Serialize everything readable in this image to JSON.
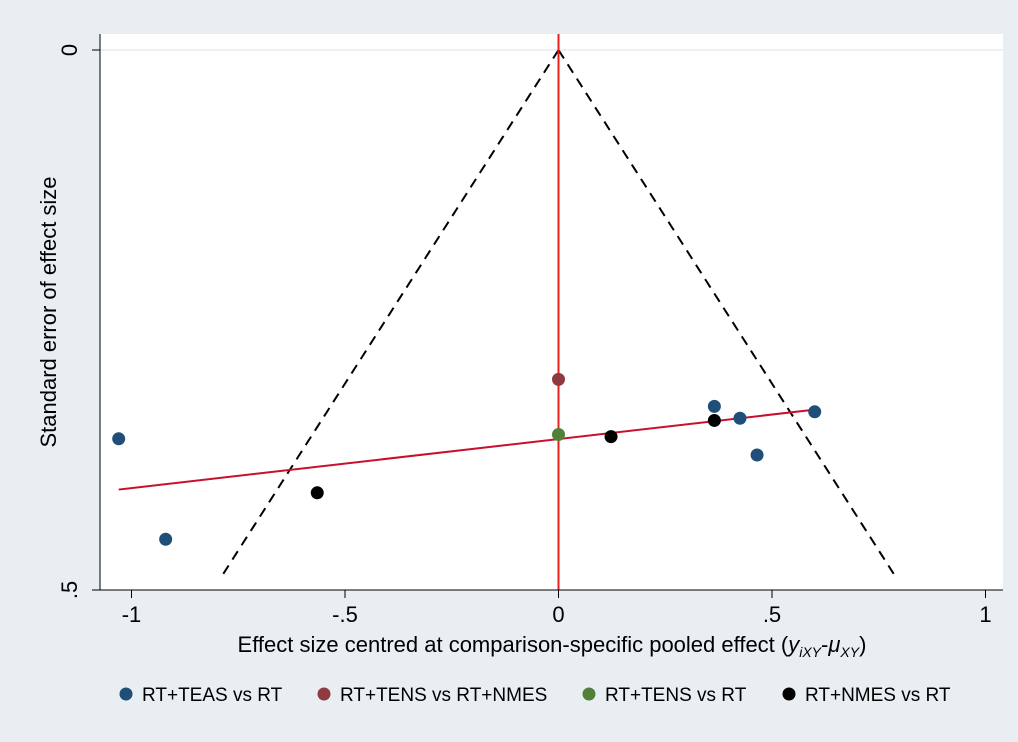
{
  "chart_data": {
    "type": "scatter",
    "plot_kind": "comparison-adjusted funnel plot",
    "xlabel_main": "Effect size centred at comparison-specific pooled effect (",
    "xlabel_y": "y",
    "xlabel_y_sub": "iXY",
    "xlabel_dash": "-",
    "xlabel_mu": "μ",
    "xlabel_mu_sub": "XY",
    "xlabel_close": ")",
    "ylabel": "Standard error of effect size",
    "xlim": [
      -1.05,
      1.05
    ],
    "ylim": [
      0.5,
      0
    ],
    "y_reversed": true,
    "x_ticks": [
      -1,
      -0.5,
      0,
      0.5,
      1
    ],
    "x_tick_labels": [
      "-1",
      "-.5",
      "0",
      ".5",
      "1"
    ],
    "y_ticks": [
      0,
      0.5
    ],
    "y_tick_labels": [
      "0",
      ".5"
    ],
    "grid": "horizontal at y=0 only",
    "legend_position": "bottom",
    "series": [
      {
        "name": "RT+TEAS vs RT",
        "color": "#1f4e79",
        "points": [
          {
            "x": -1.03,
            "y": 0.36
          },
          {
            "x": -0.92,
            "y": 0.453
          },
          {
            "x": 0.365,
            "y": 0.33
          },
          {
            "x": 0.425,
            "y": 0.341
          },
          {
            "x": 0.465,
            "y": 0.375
          },
          {
            "x": 0.6,
            "y": 0.335
          }
        ]
      },
      {
        "name": "RT+TENS vs RT+NMES",
        "color": "#8f3a40",
        "points": [
          {
            "x": 0.0,
            "y": 0.305
          }
        ]
      },
      {
        "name": "RT+TENS vs RT",
        "color": "#52803a",
        "points": [
          {
            "x": 0.0,
            "y": 0.356
          }
        ]
      },
      {
        "name": "RT+NMES vs RT",
        "color": "#000000",
        "points": [
          {
            "x": -0.565,
            "y": 0.41
          },
          {
            "x": 0.123,
            "y": 0.358
          },
          {
            "x": 0.365,
            "y": 0.343
          }
        ]
      }
    ],
    "reference_line": {
      "x": 0,
      "color": "#e8201c"
    },
    "funnel": {
      "apex": [
        0,
        0
      ],
      "left_end": [
        -0.785,
        0.485
      ],
      "right_end": [
        0.785,
        0.485
      ],
      "color": "#000000"
    },
    "regression_line": {
      "from": [
        -1.03,
        0.407
      ],
      "to": [
        0.6,
        0.333
      ],
      "color": "#c8102e"
    }
  }
}
